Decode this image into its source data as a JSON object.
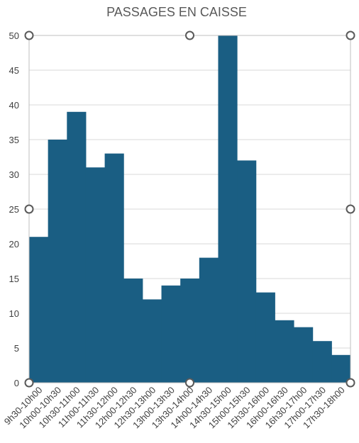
{
  "chart_data": {
    "type": "bar",
    "title": "PASSAGES EN CAISSE",
    "categories": [
      "9h30-10h00",
      "10h00-10h30",
      "10h30-11h00",
      "11h00-11h30",
      "11h30-12h00",
      "12h00-12h30",
      "12h30-13h00",
      "13h00-13h30",
      "13h30-14h00",
      "14h00-14h30",
      "14h30-15h00",
      "15h00-15h30",
      "15h30-16h00",
      "16h00-16h30",
      "16h30-17h00",
      "17h00-17h30",
      "17h30-18h00"
    ],
    "values": [
      21,
      35,
      39,
      31,
      33,
      15,
      12,
      14,
      15,
      18,
      50,
      32,
      13,
      9,
      8,
      6,
      4
    ],
    "ylim": [
      0,
      50
    ],
    "yticks": [
      0,
      5,
      10,
      15,
      20,
      25,
      30,
      35,
      40,
      45,
      50
    ],
    "grid": true,
    "bar_color": "#1a5e83",
    "selected": true
  }
}
